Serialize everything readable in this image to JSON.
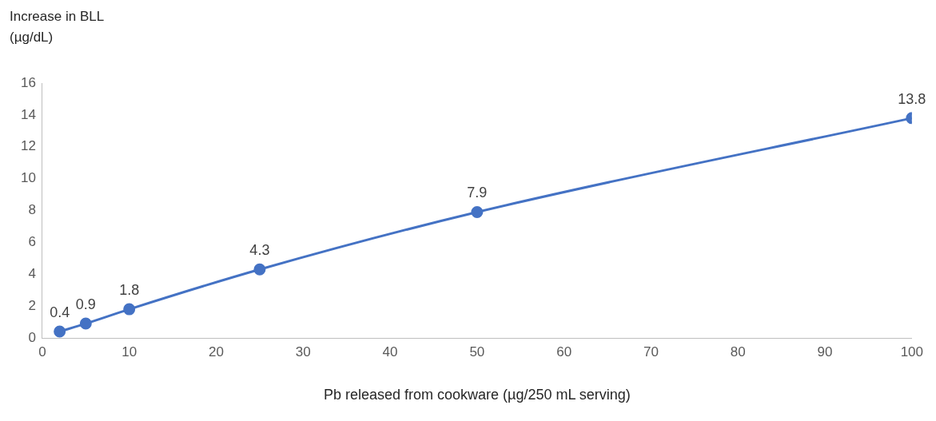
{
  "chart_data": {
    "type": "line",
    "xlabel": "Pb released from cookware (µg/250 mL serving)",
    "ylabel": "Increase in BLL (µg/dL)",
    "x": [
      2,
      5,
      10,
      25,
      50,
      100
    ],
    "series": [
      {
        "color": "#4472c4",
        "values": [
          0.4,
          0.9,
          1.8,
          4.3,
          7.9,
          13.8
        ]
      }
    ],
    "xlim": [
      0,
      100
    ],
    "xticks": [
      0,
      10,
      20,
      30,
      40,
      50,
      60,
      70,
      80,
      90,
      100
    ],
    "ylim": [
      0,
      16
    ],
    "yticks": [
      0,
      2,
      4,
      6,
      8,
      10,
      12,
      14,
      16
    ],
    "data_labels": true,
    "grid": false,
    "legend": false,
    "marker": "circle",
    "line_style": "solid"
  }
}
